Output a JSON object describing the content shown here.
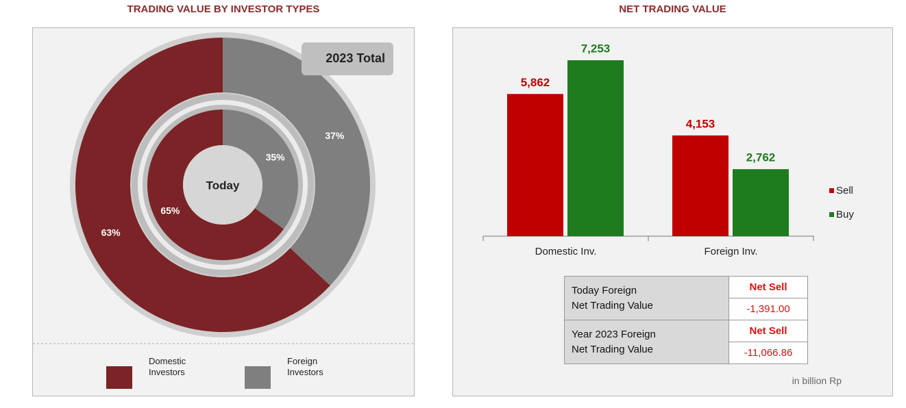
{
  "chart_data": [
    {
      "type": "donut",
      "title": "TRADING VALUE BY INVESTOR TYPES",
      "categories": [
        "Domestic Investors",
        "Foreign Investors"
      ],
      "colors": [
        "#7b2326",
        "#7f7f7f"
      ],
      "rings": [
        {
          "name": "2023 Total",
          "values": [
            63,
            37
          ],
          "value_labels": [
            "63%",
            "37%"
          ]
        },
        {
          "name": "Today",
          "values": [
            65,
            35
          ],
          "value_labels": [
            "65%",
            "35%"
          ]
        }
      ]
    },
    {
      "type": "bar",
      "title": "NET TRADING VALUE",
      "categories": [
        "Domestic Inv.",
        "Foreign Inv."
      ],
      "series": [
        {
          "name": "Sell",
          "color": "#c00000",
          "values": [
            5862,
            4153
          ],
          "value_labels": [
            "5,862",
            "4,153"
          ]
        },
        {
          "name": "Buy",
          "color": "#1e7b1e",
          "values": [
            7253,
            2762
          ],
          "value_labels": [
            "7,253",
            "2,762"
          ]
        }
      ]
    }
  ],
  "net_table": {
    "rows": [
      {
        "label": [
          "Today Foreign",
          "Net Trading Value"
        ],
        "status": "Net Sell",
        "value": "-1,391.00"
      },
      {
        "label": [
          "Year 2023 Foreign",
          "Net Trading Value"
        ],
        "status": "Net Sell",
        "value": "-11,066.86"
      }
    ],
    "note": "in billion Rp"
  }
}
